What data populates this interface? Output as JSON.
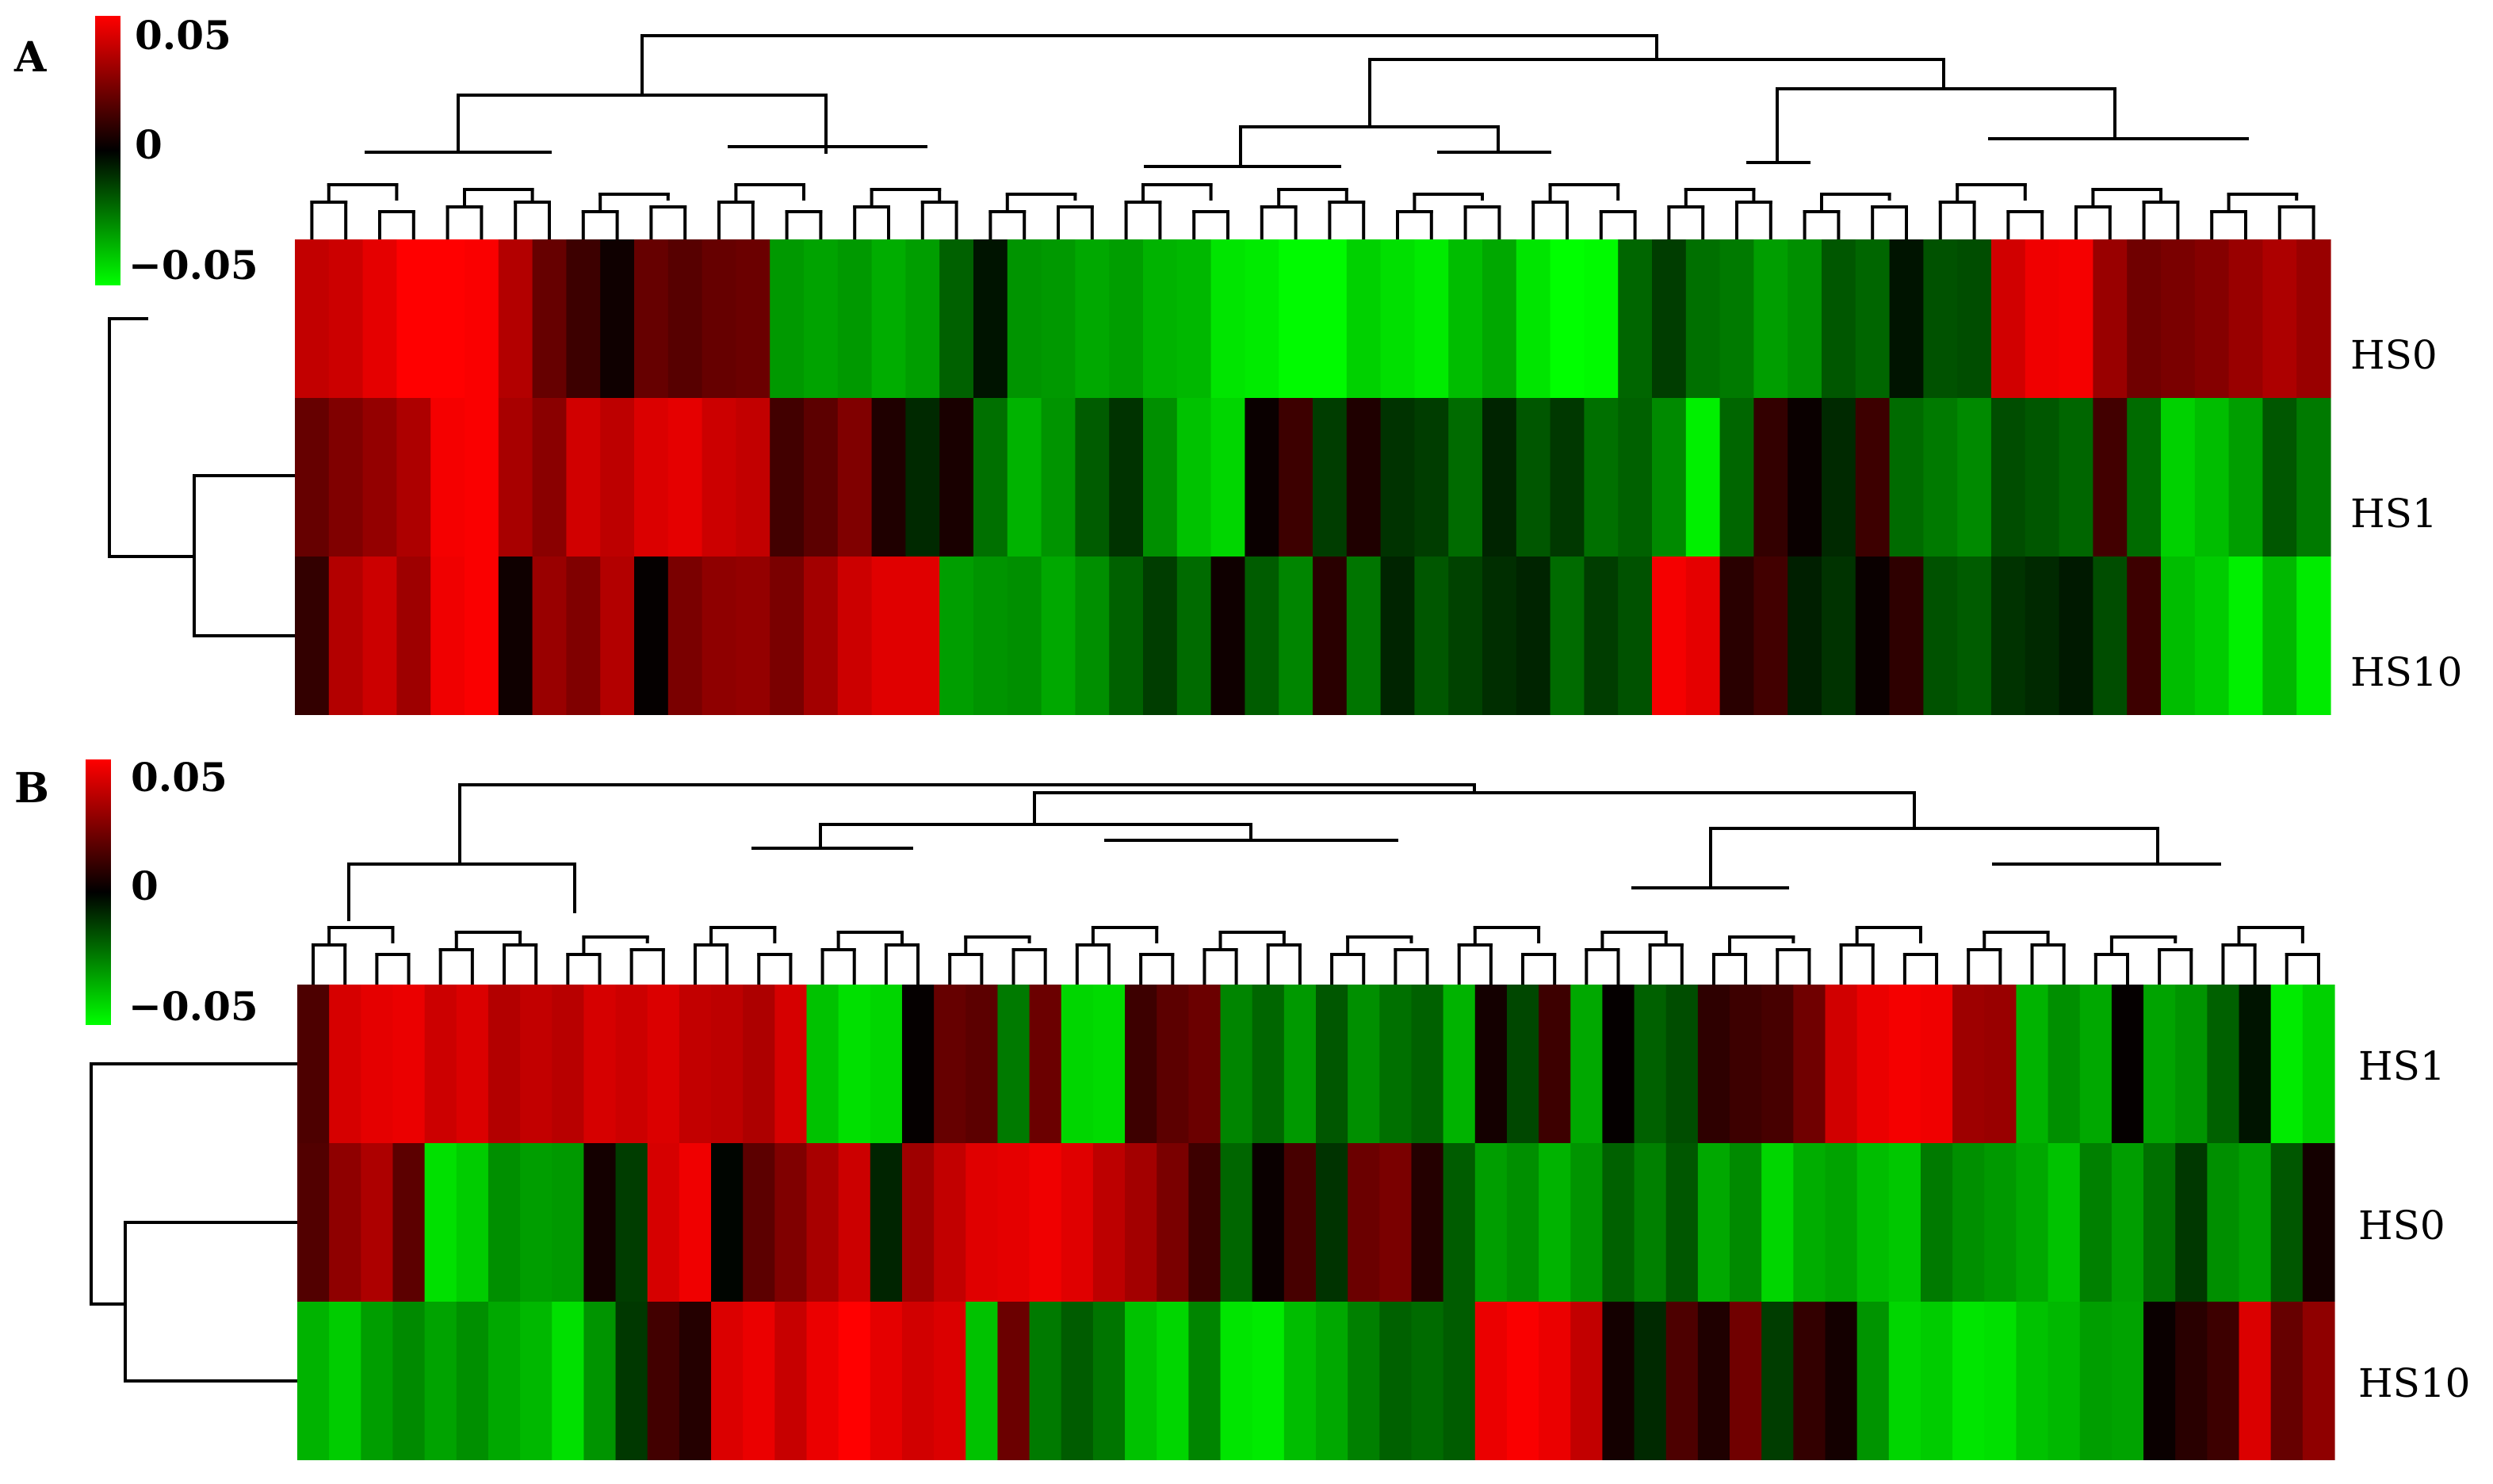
{
  "chart_data": [
    {
      "type": "heatmap",
      "panel_label": "A",
      "rows": [
        "HS0",
        "HS1",
        "HS10"
      ],
      "color_scale": {
        "min": -0.05,
        "mid": 0,
        "max": 0.05,
        "ticks": [
          "0.05",
          "0",
          "−0.05"
        ],
        "low_color": "#00ff00",
        "mid_color": "#000000",
        "high_color": "#ff0000"
      },
      "column_count": 60,
      "values": [
        [
          0.038,
          0.04,
          0.045,
          0.05,
          0.05,
          0.049,
          0.035,
          0.02,
          0.012,
          0.003,
          0.02,
          0.017,
          0.02,
          0.021,
          -0.03,
          -0.032,
          -0.03,
          -0.034,
          -0.031,
          -0.019,
          -0.004,
          -0.029,
          -0.03,
          -0.033,
          -0.031,
          -0.035,
          -0.036,
          -0.045,
          -0.046,
          -0.049,
          -0.049,
          -0.041,
          -0.044,
          -0.046,
          -0.037,
          -0.033,
          -0.045,
          -0.05,
          -0.049,
          -0.02,
          -0.012,
          -0.022,
          -0.024,
          -0.031,
          -0.028,
          -0.017,
          -0.02,
          -0.004,
          -0.016,
          -0.015,
          0.041,
          0.047,
          0.048,
          0.03,
          0.022,
          0.024,
          0.026,
          0.03,
          0.034,
          0.03
        ],
        [
          0.02,
          0.025,
          0.029,
          0.034,
          0.048,
          0.049,
          0.033,
          0.027,
          0.041,
          0.037,
          0.043,
          0.045,
          0.04,
          0.038,
          0.013,
          0.018,
          0.025,
          0.006,
          -0.008,
          0.005,
          -0.022,
          -0.035,
          -0.029,
          -0.018,
          -0.01,
          -0.028,
          -0.038,
          -0.042,
          0.002,
          0.012,
          -0.012,
          0.006,
          -0.01,
          -0.012,
          -0.021,
          -0.007,
          -0.017,
          -0.011,
          -0.022,
          -0.019,
          -0.027,
          -0.047,
          -0.02,
          0.01,
          0.002,
          -0.008,
          0.012,
          -0.021,
          -0.024,
          -0.027,
          -0.015,
          -0.017,
          -0.02,
          0.013,
          -0.021,
          -0.041,
          -0.037,
          -0.031,
          -0.017,
          -0.024
        ],
        [
          0.01,
          0.035,
          0.04,
          0.031,
          0.047,
          0.049,
          0.003,
          0.03,
          0.025,
          0.035,
          0.001,
          0.024,
          0.028,
          0.029,
          0.024,
          0.032,
          0.04,
          0.044,
          0.044,
          -0.031,
          -0.029,
          -0.028,
          -0.033,
          -0.028,
          -0.019,
          -0.012,
          -0.021,
          0.003,
          -0.018,
          -0.026,
          0.008,
          -0.023,
          -0.007,
          -0.017,
          -0.013,
          -0.009,
          -0.007,
          -0.021,
          -0.012,
          -0.016,
          0.048,
          0.045,
          0.008,
          0.013,
          -0.006,
          -0.01,
          0.002,
          0.009,
          -0.016,
          -0.018,
          -0.01,
          -0.008,
          -0.005,
          -0.015,
          0.012,
          -0.037,
          -0.04,
          -0.047,
          -0.036,
          -0.046
        ]
      ]
    },
    {
      "type": "heatmap",
      "panel_label": "B",
      "rows": [
        "HS1",
        "HS0",
        "HS10"
      ],
      "color_scale": {
        "min": -0.05,
        "mid": 0,
        "max": 0.05,
        "ticks": [
          "0.05",
          "0",
          "−0.05"
        ],
        "low_color": "#00ff00",
        "mid_color": "#000000",
        "high_color": "#ff0000"
      },
      "column_count": 64,
      "values": [
        [
          0.015,
          0.042,
          0.045,
          0.046,
          0.04,
          0.043,
          0.035,
          0.038,
          0.036,
          0.042,
          0.04,
          0.043,
          0.038,
          0.037,
          0.034,
          0.042,
          -0.038,
          -0.044,
          -0.042,
          0.001,
          0.02,
          0.018,
          -0.024,
          0.021,
          -0.042,
          -0.043,
          0.012,
          0.018,
          0.021,
          -0.026,
          -0.02,
          -0.03,
          -0.017,
          -0.028,
          -0.022,
          -0.019,
          -0.035,
          0.004,
          -0.014,
          0.012,
          -0.033,
          0.001,
          -0.019,
          -0.015,
          0.009,
          0.012,
          0.014,
          0.022,
          0.041,
          0.046,
          0.048,
          0.047,
          0.031,
          0.03,
          -0.035,
          -0.028,
          -0.033,
          0.001,
          -0.032,
          -0.029,
          -0.019,
          -0.004,
          -0.046,
          -0.041
        ],
        [
          0.016,
          0.028,
          0.034,
          0.018,
          -0.044,
          -0.04,
          -0.028,
          -0.031,
          -0.03,
          0.004,
          -0.012,
          0.042,
          0.047,
          -0.001,
          0.018,
          0.025,
          0.033,
          0.04,
          -0.007,
          0.031,
          0.038,
          0.044,
          0.045,
          0.047,
          0.044,
          0.037,
          0.032,
          0.024,
          0.012,
          -0.02,
          0.002,
          0.014,
          -0.01,
          0.021,
          0.024,
          0.007,
          -0.018,
          -0.031,
          -0.028,
          -0.035,
          -0.029,
          -0.019,
          -0.025,
          -0.017,
          -0.033,
          -0.027,
          -0.042,
          -0.034,
          -0.032,
          -0.037,
          -0.039,
          -0.024,
          -0.028,
          -0.03,
          -0.033,
          -0.038,
          -0.025,
          -0.031,
          -0.022,
          -0.011,
          -0.028,
          -0.031,
          -0.017,
          0.004
        ],
        [
          -0.035,
          -0.04,
          -0.031,
          -0.027,
          -0.032,
          -0.028,
          -0.033,
          -0.036,
          -0.044,
          -0.029,
          -0.011,
          0.013,
          0.007,
          0.043,
          0.046,
          0.039,
          0.046,
          0.05,
          0.045,
          0.041,
          0.043,
          -0.038,
          0.021,
          -0.024,
          -0.018,
          -0.023,
          -0.038,
          -0.042,
          -0.026,
          -0.045,
          -0.046,
          -0.037,
          -0.033,
          -0.025,
          -0.019,
          -0.021,
          -0.018,
          0.046,
          0.049,
          0.046,
          0.038,
          0.004,
          -0.008,
          0.015,
          0.006,
          0.022,
          -0.012,
          0.01,
          0.004,
          -0.029,
          -0.042,
          -0.04,
          -0.045,
          -0.044,
          -0.038,
          -0.036,
          -0.031,
          -0.032,
          0.002,
          0.008,
          0.012,
          0.043,
          0.02,
          0.028
        ]
      ]
    }
  ]
}
